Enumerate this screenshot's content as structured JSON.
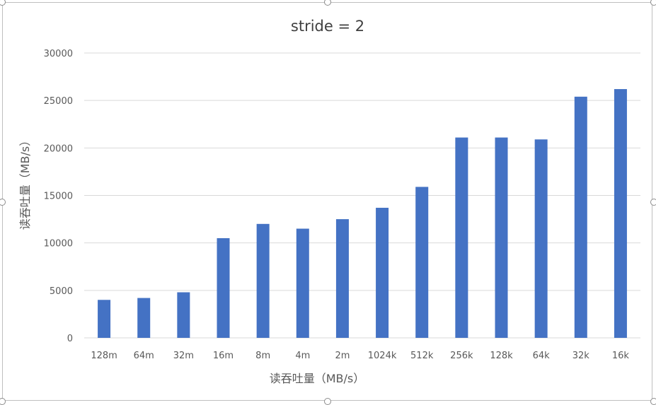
{
  "chart_data": {
    "type": "bar",
    "title": "stride = 2",
    "xlabel": "读吞吐量（MB/s）",
    "ylabel": "读吞吐量（MB/s）",
    "categories": [
      "128m",
      "64m",
      "32m",
      "16m",
      "8m",
      "4m",
      "2m",
      "1024k",
      "512k",
      "256k",
      "128k",
      "64k",
      "32k",
      "16k"
    ],
    "values": [
      4000,
      4200,
      4800,
      10500,
      12000,
      11500,
      12500,
      13700,
      15900,
      21100,
      21100,
      20900,
      25400,
      26200
    ],
    "ylim": [
      0,
      30000
    ],
    "yticks": [
      0,
      5000,
      10000,
      15000,
      20000,
      25000,
      30000
    ],
    "grid": true,
    "legend": "none",
    "bar_color": "#4472c4",
    "grid_color": "#d9d9d9"
  }
}
